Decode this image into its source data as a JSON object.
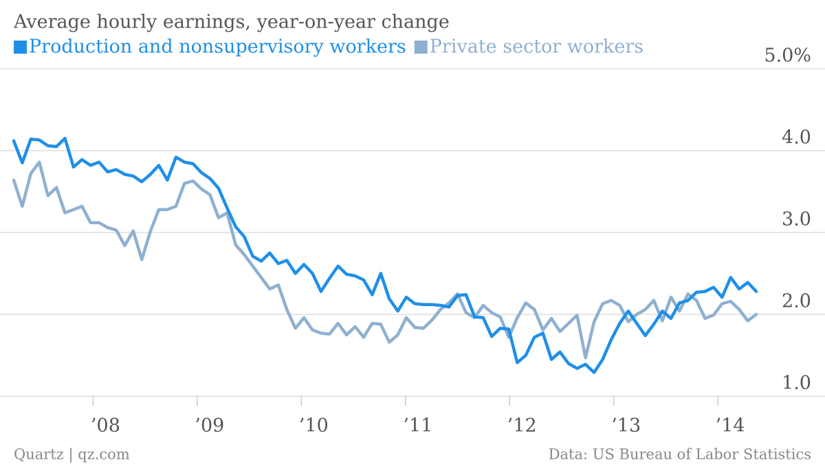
{
  "chart_data": {
    "type": "line",
    "title": "Average hourly earnings, year-on-year change",
    "source": "Data: US Bureau of Labor Statistics",
    "credit": "Quartz | qz.com",
    "x": [
      0,
      1,
      2,
      3,
      4,
      5,
      6,
      7,
      8,
      9,
      10,
      11,
      12,
      13,
      14,
      15,
      16,
      17,
      18,
      19,
      20,
      21,
      22,
      23,
      24,
      25,
      26,
      27,
      28,
      29,
      30,
      31,
      32,
      33,
      34,
      35,
      36,
      37,
      38,
      39,
      40,
      41,
      42,
      43,
      44,
      45,
      46,
      47,
      48,
      49,
      50,
      51,
      52,
      53,
      54,
      55,
      56,
      57,
      58,
      59,
      60,
      61,
      62,
      63,
      64,
      65,
      66,
      67,
      68,
      69,
      70,
      71,
      72,
      73,
      74,
      75,
      76,
      77,
      78,
      79,
      80,
      81,
      82,
      83,
      84,
      85,
      86,
      87
    ],
    "xlim": [
      0,
      87
    ],
    "xticks": [
      {
        "value": 9.3,
        "label": "’08"
      },
      {
        "value": 21.5,
        "label": "’09"
      },
      {
        "value": 33.7,
        "label": "’10"
      },
      {
        "value": 45.9,
        "label": "’11"
      },
      {
        "value": 58.1,
        "label": "’12"
      },
      {
        "value": 70.3,
        "label": "’13"
      },
      {
        "value": 82.5,
        "label": "’14"
      }
    ],
    "ylim": [
      1.0,
      5.0
    ],
    "yticks": [
      {
        "value": 1.0,
        "label": "1.0"
      },
      {
        "value": 2.0,
        "label": "2.0"
      },
      {
        "value": 3.0,
        "label": "3.0"
      },
      {
        "value": 4.0,
        "label": "4.0"
      },
      {
        "value": 5.0,
        "label": "5.0%"
      }
    ],
    "grid": true,
    "series": [
      {
        "name": "Production and nonsupervisory workers",
        "color": "#1f8fe8",
        "values": [
          4.12,
          3.85,
          4.14,
          4.13,
          4.06,
          4.05,
          4.15,
          3.8,
          3.89,
          3.82,
          3.86,
          3.74,
          3.77,
          3.71,
          3.69,
          3.62,
          3.71,
          3.82,
          3.64,
          3.92,
          3.86,
          3.84,
          3.73,
          3.66,
          3.54,
          3.3,
          3.07,
          2.95,
          2.71,
          2.65,
          2.75,
          2.62,
          2.66,
          2.5,
          2.61,
          2.5,
          2.28,
          2.44,
          2.59,
          2.49,
          2.47,
          2.42,
          2.24,
          2.5,
          2.19,
          2.04,
          2.21,
          2.13,
          2.12,
          2.12,
          2.11,
          2.09,
          2.23,
          2.24,
          1.97,
          1.96,
          1.73,
          1.83,
          1.82,
          1.41,
          1.5,
          1.72,
          1.77,
          1.45,
          1.54,
          1.4,
          1.34,
          1.39,
          1.29,
          1.45,
          1.69,
          1.89,
          2.04,
          1.89,
          1.74,
          1.88,
          2.04,
          1.95,
          2.14,
          2.17,
          2.27,
          2.28,
          2.33,
          2.21,
          2.45,
          2.31,
          2.39,
          2.28
        ]
      },
      {
        "name": "Private sector workers",
        "color": "#8fb0d0",
        "values": [
          3.64,
          3.32,
          3.72,
          3.86,
          3.45,
          3.55,
          3.24,
          3.28,
          3.32,
          3.12,
          3.12,
          3.06,
          3.03,
          2.84,
          3.02,
          2.67,
          3.01,
          3.28,
          3.28,
          3.32,
          3.6,
          3.63,
          3.53,
          3.46,
          3.18,
          3.24,
          2.85,
          2.73,
          2.59,
          2.45,
          2.31,
          2.36,
          2.06,
          1.83,
          1.96,
          1.81,
          1.77,
          1.76,
          1.89,
          1.75,
          1.85,
          1.72,
          1.89,
          1.88,
          1.66,
          1.75,
          1.96,
          1.84,
          1.83,
          1.93,
          2.06,
          2.14,
          2.25,
          2.02,
          1.96,
          2.11,
          2.02,
          1.97,
          1.72,
          1.96,
          2.14,
          2.06,
          1.81,
          1.95,
          1.79,
          1.89,
          1.99,
          1.47,
          1.91,
          2.13,
          2.17,
          2.11,
          1.91,
          2.0,
          2.06,
          2.17,
          1.92,
          2.21,
          2.04,
          2.25,
          2.17,
          1.95,
          1.99,
          2.13,
          2.16,
          2.06,
          1.92,
          2.0
        ]
      }
    ]
  }
}
